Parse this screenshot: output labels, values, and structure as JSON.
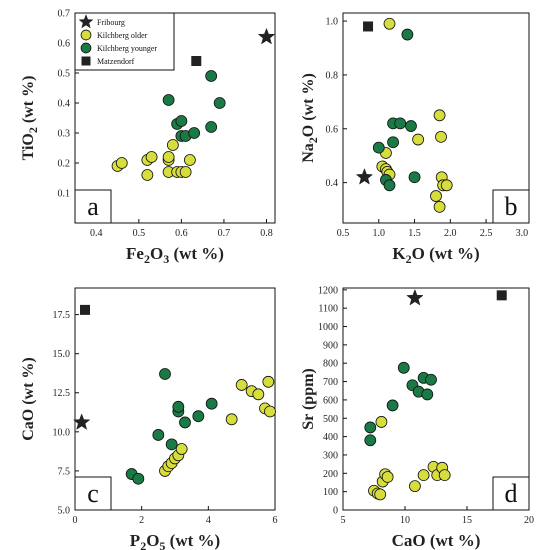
{
  "colors": {
    "fribourg": "#222222",
    "kilchberg_older": "#d6dd3c",
    "kilchberg_younger": "#1a7a45",
    "matzendorf": "#222222",
    "stroke": "#111111"
  },
  "legend": [
    {
      "key": "fribourg",
      "label": "Fribourg",
      "marker": "star"
    },
    {
      "key": "kilchberg_older",
      "label": "Kilchberg older",
      "marker": "circle"
    },
    {
      "key": "kilchberg_younger",
      "label": "Kilchberg younger",
      "marker": "circle"
    },
    {
      "key": "matzendorf",
      "label": "Matzendorf",
      "marker": "square"
    }
  ],
  "chart_data": [
    {
      "type": "scatter",
      "panel": "a",
      "xlabel": "Fe2O3  (wt %)",
      "ylabel": "TiO2  (wt  %)",
      "xlim": [
        0.35,
        0.82
      ],
      "ylim": [
        0.0,
        0.7
      ],
      "xticks": [
        "0.4",
        "0.5",
        "0.6",
        "0.7",
        "0.8"
      ],
      "yticks": [
        "0.1",
        "0.2",
        "0.3",
        "0.4",
        "0.5",
        "0.6",
        "0.7"
      ],
      "xtick_values": [
        0.4,
        0.5,
        0.6,
        0.7,
        0.8
      ],
      "ytick_values": [
        0.1,
        0.2,
        0.3,
        0.4,
        0.5,
        0.6,
        0.7
      ],
      "legend_position": "top-left",
      "series": [
        {
          "key": "fribourg",
          "points": [
            [
              0.8,
              0.62
            ]
          ]
        },
        {
          "key": "matzendorf",
          "points": [
            [
              0.635,
              0.54
            ]
          ]
        },
        {
          "key": "kilchberg_older",
          "points": [
            [
              0.45,
              0.19
            ],
            [
              0.46,
              0.2
            ],
            [
              0.52,
              0.21
            ],
            [
              0.53,
              0.22
            ],
            [
              0.52,
              0.16
            ],
            [
              0.57,
              0.17
            ],
            [
              0.57,
              0.21
            ],
            [
              0.57,
              0.22
            ],
            [
              0.58,
              0.26
            ],
            [
              0.59,
              0.17
            ],
            [
              0.6,
              0.17
            ],
            [
              0.61,
              0.17
            ],
            [
              0.62,
              0.21
            ]
          ]
        },
        {
          "key": "kilchberg_younger",
          "points": [
            [
              0.57,
              0.41
            ],
            [
              0.59,
              0.33
            ],
            [
              0.6,
              0.29
            ],
            [
              0.6,
              0.34
            ],
            [
              0.61,
              0.29
            ],
            [
              0.63,
              0.3
            ],
            [
              0.67,
              0.32
            ],
            [
              0.67,
              0.49
            ],
            [
              0.69,
              0.4
            ]
          ]
        }
      ]
    },
    {
      "type": "scatter",
      "panel": "b",
      "xlabel": "K2O  (wt %)",
      "ylabel": "Na2O  (wt  %)",
      "xlim": [
        0.5,
        3.1
      ],
      "ylim": [
        0.25,
        1.03
      ],
      "xticks": [
        "0.5",
        "1.0",
        "1.5",
        "2.0",
        "2.5",
        "3.0"
      ],
      "yticks": [
        "0.4",
        "0.6",
        "0.8",
        "1.0"
      ],
      "xtick_values": [
        0.5,
        1.0,
        1.5,
        2.0,
        2.5,
        3.0
      ],
      "ytick_values": [
        0.4,
        0.6,
        0.8,
        1.0
      ],
      "series": [
        {
          "key": "fribourg",
          "points": [
            [
              0.8,
              0.42
            ]
          ]
        },
        {
          "key": "matzendorf",
          "points": [
            [
              0.85,
              0.98
            ]
          ]
        },
        {
          "key": "kilchberg_older",
          "points": [
            [
              1.15,
              0.99
            ],
            [
              1.05,
              0.46
            ],
            [
              1.1,
              0.45
            ],
            [
              1.12,
              0.44
            ],
            [
              1.15,
              0.43
            ],
            [
              1.1,
              0.51
            ],
            [
              1.55,
              0.56
            ],
            [
              1.85,
              0.65
            ],
            [
              1.87,
              0.57
            ],
            [
              1.8,
              0.35
            ],
            [
              1.85,
              0.31
            ],
            [
              1.88,
              0.42
            ],
            [
              1.9,
              0.39
            ],
            [
              1.95,
              0.39
            ]
          ]
        },
        {
          "key": "kilchberg_younger",
          "points": [
            [
              1.4,
              0.95
            ],
            [
              1.0,
              0.53
            ],
            [
              1.1,
              0.41
            ],
            [
              1.15,
              0.39
            ],
            [
              1.2,
              0.55
            ],
            [
              1.2,
              0.62
            ],
            [
              1.3,
              0.62
            ],
            [
              1.45,
              0.61
            ],
            [
              1.5,
              0.42
            ]
          ]
        }
      ]
    },
    {
      "type": "scatter",
      "panel": "c",
      "xlabel": "P2O5  (wt %)",
      "ylabel": "CaO  (wt  %)",
      "xlim": [
        0.0,
        6.0
      ],
      "ylim": [
        5.0,
        19.2
      ],
      "xticks": [
        "0",
        "2",
        "4",
        "6"
      ],
      "yticks": [
        "5.0",
        "7.5",
        "10.0",
        "12.5",
        "15.0",
        "17.5"
      ],
      "xtick_values": [
        0,
        2,
        4,
        6
      ],
      "ytick_values": [
        5.0,
        7.5,
        10.0,
        12.5,
        15.0,
        17.5
      ],
      "series": [
        {
          "key": "fribourg",
          "points": [
            [
              0.2,
              10.6
            ]
          ]
        },
        {
          "key": "matzendorf",
          "points": [
            [
              0.3,
              17.8
            ]
          ]
        },
        {
          "key": "kilchberg_older",
          "points": [
            [
              2.7,
              7.5
            ],
            [
              2.8,
              7.8
            ],
            [
              2.9,
              8.0
            ],
            [
              3.0,
              8.3
            ],
            [
              3.1,
              8.5
            ],
            [
              3.2,
              8.9
            ],
            [
              4.7,
              10.8
            ],
            [
              5.0,
              13.0
            ],
            [
              5.3,
              12.6
            ],
            [
              5.5,
              12.4
            ],
            [
              5.7,
              11.5
            ],
            [
              5.8,
              13.2
            ],
            [
              5.85,
              11.3
            ]
          ]
        },
        {
          "key": "kilchberg_younger",
          "points": [
            [
              1.7,
              7.3
            ],
            [
              1.9,
              7.0
            ],
            [
              2.5,
              9.8
            ],
            [
              2.7,
              13.7
            ],
            [
              2.9,
              9.2
            ],
            [
              3.1,
              11.3
            ],
            [
              3.1,
              11.6
            ],
            [
              3.3,
              10.6
            ],
            [
              3.7,
              11.0
            ],
            [
              4.1,
              11.8
            ]
          ]
        }
      ]
    },
    {
      "type": "scatter",
      "panel": "d",
      "xlabel": "CaO  (wt %)",
      "ylabel": "Sr  (ppm)",
      "xlim": [
        5.0,
        20.0
      ],
      "ylim": [
        0,
        1210
      ],
      "xticks": [
        "5",
        "10",
        "15",
        "20"
      ],
      "yticks": [
        "0",
        "100",
        "200",
        "300",
        "400",
        "500",
        "600",
        "700",
        "800",
        "900",
        "1000",
        "1100",
        "1200"
      ],
      "xtick_values": [
        5,
        10,
        15,
        20
      ],
      "ytick_values": [
        0,
        100,
        200,
        300,
        400,
        500,
        600,
        700,
        800,
        900,
        1000,
        1100,
        1200
      ],
      "series": [
        {
          "key": "fribourg",
          "points": [
            [
              10.8,
              1155
            ]
          ]
        },
        {
          "key": "matzendorf",
          "points": [
            [
              17.8,
              1170
            ]
          ]
        },
        {
          "key": "kilchberg_older",
          "points": [
            [
              7.5,
              105
            ],
            [
              7.8,
              90
            ],
            [
              8.0,
              85
            ],
            [
              8.2,
              155
            ],
            [
              8.4,
              195
            ],
            [
              8.6,
              180
            ],
            [
              8.1,
              480
            ],
            [
              10.8,
              130
            ],
            [
              11.5,
              190
            ],
            [
              12.3,
              235
            ],
            [
              12.6,
              190
            ],
            [
              13.0,
              230
            ],
            [
              13.2,
              190
            ]
          ]
        },
        {
          "key": "kilchberg_younger",
          "points": [
            [
              7.2,
              380
            ],
            [
              7.2,
              450
            ],
            [
              9.0,
              570
            ],
            [
              9.9,
              775
            ],
            [
              10.6,
              680
            ],
            [
              11.1,
              645
            ],
            [
              11.5,
              720
            ],
            [
              11.8,
              630
            ],
            [
              12.1,
              710
            ]
          ]
        }
      ]
    }
  ]
}
